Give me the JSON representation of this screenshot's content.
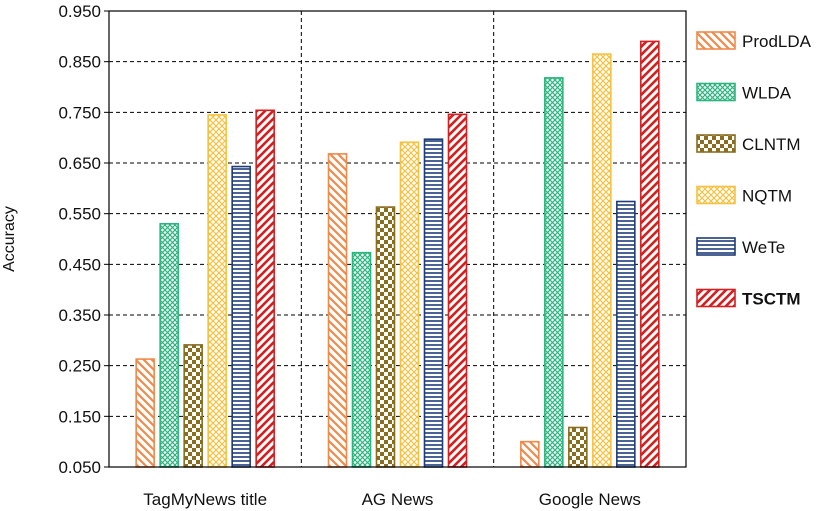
{
  "chart_data": {
    "type": "bar",
    "categories": [
      "TagMyNews title",
      "AG News",
      "Google News"
    ],
    "ylabel": "Accuracy",
    "xlabel": "",
    "ylim": [
      0.05,
      0.95
    ],
    "yticks": [
      "0.050",
      "0.150",
      "0.250",
      "0.350",
      "0.450",
      "0.550",
      "0.650",
      "0.750",
      "0.850",
      "0.950"
    ],
    "grid": "dashed",
    "legend_position": "right",
    "series": [
      {
        "name": "ProdLDA",
        "values": [
          0.263,
          0.668,
          0.1
        ],
        "color": "#f08a4b",
        "pattern": "diagonal-back",
        "bold": false
      },
      {
        "name": "WLDA",
        "values": [
          0.53,
          0.473,
          0.818
        ],
        "color": "#2bb57e",
        "pattern": "crosshatch",
        "bold": false
      },
      {
        "name": "CLNTM",
        "values": [
          0.291,
          0.563,
          0.128
        ],
        "color": "#8a6d1e",
        "pattern": "checker",
        "bold": false
      },
      {
        "name": "NQTM",
        "values": [
          0.745,
          0.691,
          0.865
        ],
        "color": "#f5c242",
        "pattern": "crosshatch-light",
        "bold": false
      },
      {
        "name": "WeTe",
        "values": [
          0.643,
          0.697,
          0.574
        ],
        "color": "#1f3d7a",
        "pattern": "horizontal",
        "bold": false
      },
      {
        "name": "TSCTM",
        "values": [
          0.754,
          0.746,
          0.89
        ],
        "color": "#d42020",
        "pattern": "diagonal",
        "bold": true
      }
    ]
  }
}
